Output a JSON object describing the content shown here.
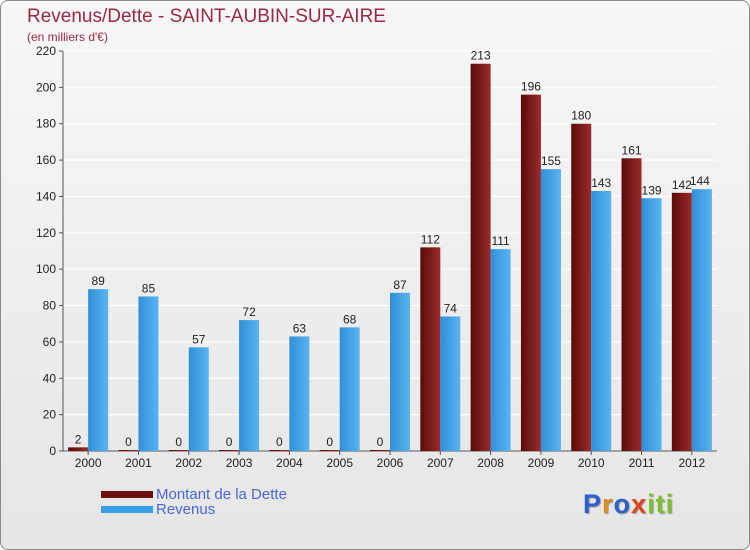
{
  "header": {
    "title": "Revenus/Dette - SAINT-AUBIN-SUR-AIRE",
    "subtitle": "(en milliers d'€)"
  },
  "chart_data": {
    "type": "bar",
    "categories": [
      "2000",
      "2001",
      "2002",
      "2003",
      "2004",
      "2005",
      "2006",
      "2007",
      "2008",
      "2009",
      "2010",
      "2011",
      "2012"
    ],
    "series": [
      {
        "name": "Montant de la Dette",
        "color": "#8b1a1a",
        "values": [
          2,
          0,
          0,
          0,
          0,
          0,
          0,
          112,
          213,
          196,
          180,
          161,
          142
        ]
      },
      {
        "name": "Revenus",
        "color": "#3a9ee6",
        "values": [
          89,
          85,
          57,
          72,
          63,
          68,
          87,
          74,
          111,
          155,
          143,
          139,
          144
        ]
      }
    ],
    "ylim": [
      0,
      220
    ],
    "yticks": [
      0,
      20,
      40,
      60,
      80,
      100,
      120,
      140,
      160,
      180,
      200,
      220
    ],
    "grid": true,
    "legend_position": "bottom-left"
  },
  "logo": {
    "text": "Proxiti",
    "letters": [
      {
        "ch": "P",
        "color": "#2f5fcf"
      },
      {
        "ch": "r",
        "color": "#e08a1a"
      },
      {
        "ch": "o",
        "color": "#2f5fcf"
      },
      {
        "ch": "x",
        "color": "#e0441a"
      },
      {
        "ch": "i",
        "color": "#7bbf2a"
      },
      {
        "ch": "t",
        "color": "#7bbf2a"
      },
      {
        "ch": "i",
        "color": "#7bbf2a"
      }
    ]
  }
}
